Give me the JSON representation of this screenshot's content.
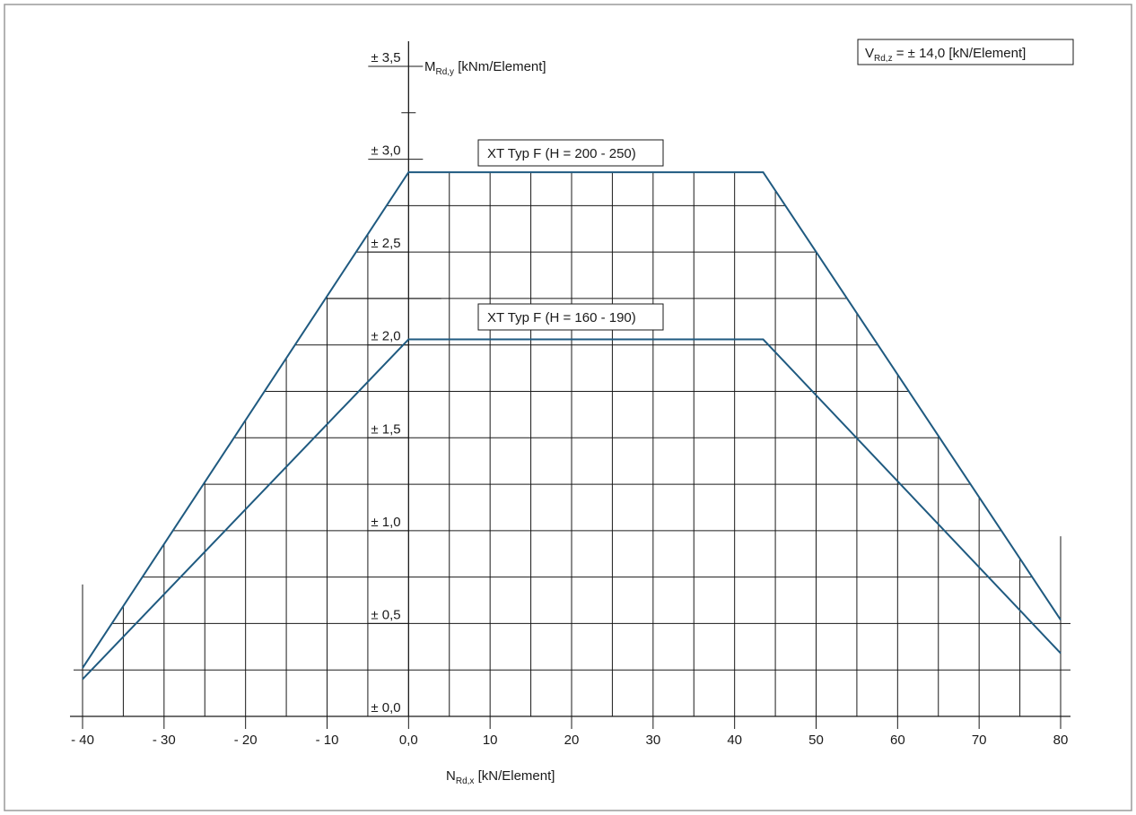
{
  "header": {
    "caption_fragment": ""
  },
  "chart_data": {
    "type": "line",
    "x_axis": {
      "label_main": "N",
      "label_sub": "Rd,x",
      "label_unit": " [kN/Element]",
      "range": [
        -40,
        80
      ],
      "ticks": [
        -40,
        -30,
        -20,
        -10,
        0,
        10,
        20,
        30,
        40,
        50,
        60,
        70,
        80
      ],
      "tick_labels": [
        "- 40",
        "- 30",
        "- 20",
        "- 10",
        "0,0",
        "10",
        "20",
        "30",
        "40",
        "50",
        "60",
        "70",
        "80"
      ],
      "grid_step": 5
    },
    "y_axis": {
      "label_main": "M",
      "label_sub": "Rd,y",
      "label_unit": " [kNm/Element]",
      "range": [
        0,
        3.5
      ],
      "ticks": [
        0,
        0.5,
        1.0,
        1.5,
        2.0,
        2.5,
        3.0,
        3.5
      ],
      "tick_labels": [
        "± 0,0",
        "± 0,5",
        "± 1,0",
        "± 1,5",
        "± 2,0",
        "± 2,5",
        "± 3,0",
        "± 3,5"
      ],
      "grid_step": 0.25
    },
    "shear_box": {
      "main": "V",
      "sub": "Rd,z",
      "rest": " = ± 14,0 [kN/Element]"
    },
    "series": [
      {
        "name": "XT Typ F (H = 200 - 250)",
        "color": "#1f5a80",
        "points": [
          [
            -40,
            0.26
          ],
          [
            0,
            2.93
          ],
          [
            43.5,
            2.93
          ],
          [
            80,
            0.52
          ]
        ]
      },
      {
        "name": "XT Typ F (H = 160 - 190)",
        "color": "#1f5a80",
        "points": [
          [
            -40,
            0.2
          ],
          [
            0,
            2.03
          ],
          [
            43.5,
            2.03
          ],
          [
            80,
            0.34
          ]
        ]
      }
    ],
    "grid": true
  }
}
